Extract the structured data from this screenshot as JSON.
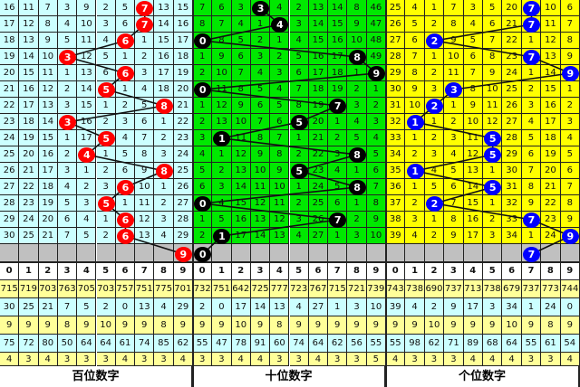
{
  "chart_data": {
    "type": "table",
    "header": [
      "0",
      "1",
      "2",
      "3",
      "4",
      "5",
      "6",
      "7",
      "8",
      "9"
    ],
    "panels": [
      {
        "title": "百位数字",
        "bg": "#ccffff",
        "ball_color": "#ff0000",
        "rows": [
          [
            16,
            11,
            7,
            3,
            9,
            2,
            5,
            7,
            13,
            15
          ],
          [
            17,
            12,
            8,
            4,
            10,
            3,
            6,
            7,
            14,
            16
          ],
          [
            18,
            13,
            9,
            5,
            11,
            4,
            6,
            1,
            15,
            17
          ],
          [
            19,
            14,
            10,
            3,
            12,
            5,
            1,
            2,
            16,
            18
          ],
          [
            20,
            15,
            11,
            1,
            13,
            6,
            6,
            3,
            17,
            19
          ],
          [
            21,
            16,
            12,
            2,
            14,
            5,
            1,
            4,
            18,
            20
          ],
          [
            22,
            17,
            13,
            3,
            15,
            1,
            2,
            5,
            8,
            21
          ],
          [
            23,
            18,
            14,
            3,
            16,
            2,
            3,
            6,
            1,
            22
          ],
          [
            24,
            19,
            15,
            1,
            17,
            5,
            4,
            7,
            2,
            23
          ],
          [
            25,
            20,
            16,
            2,
            4,
            1,
            5,
            8,
            3,
            24
          ],
          [
            26,
            21,
            17,
            3,
            1,
            2,
            6,
            9,
            8,
            25
          ],
          [
            27,
            22,
            18,
            4,
            2,
            3,
            6,
            10,
            1,
            26
          ],
          [
            28,
            23,
            19,
            5,
            3,
            5,
            1,
            11,
            2,
            27
          ],
          [
            29,
            24,
            20,
            6,
            4,
            1,
            6,
            12,
            3,
            28
          ],
          [
            30,
            25,
            21,
            7,
            5,
            2,
            6,
            13,
            4,
            29
          ]
        ],
        "balls": [
          7,
          7,
          6,
          3,
          6,
          5,
          8,
          3,
          5,
          4,
          8,
          6,
          5,
          6,
          6,
          9
        ],
        "stats": [
          [
            715,
            719,
            703,
            763,
            705,
            703,
            757,
            751,
            775,
            701
          ],
          [
            30,
            25,
            21,
            7,
            5,
            2,
            0,
            13,
            4,
            29
          ],
          [
            9,
            9,
            9,
            8,
            9,
            10,
            9,
            9,
            8,
            9
          ],
          [
            75,
            72,
            80,
            50,
            64,
            64,
            61,
            74,
            85,
            62
          ],
          [
            4,
            3,
            4,
            3,
            3,
            3,
            4,
            3,
            3,
            4
          ]
        ]
      },
      {
        "title": "十位数字",
        "bg": "#00e800",
        "ball_color": "#000000",
        "rows": [
          [
            7,
            6,
            3,
            3,
            4,
            2,
            13,
            14,
            8,
            46
          ],
          [
            8,
            7,
            4,
            1,
            4,
            3,
            14,
            15,
            9,
            47
          ],
          [
            0,
            8,
            5,
            2,
            1,
            4,
            15,
            16,
            10,
            48
          ],
          [
            1,
            9,
            6,
            3,
            2,
            5,
            16,
            17,
            8,
            49
          ],
          [
            2,
            10,
            7,
            4,
            3,
            6,
            17,
            18,
            1,
            9
          ],
          [
            0,
            11,
            8,
            5,
            4,
            7,
            18,
            19,
            2,
            1
          ],
          [
            1,
            12,
            9,
            6,
            5,
            8,
            19,
            7,
            3,
            2
          ],
          [
            2,
            13,
            10,
            7,
            6,
            5,
            20,
            1,
            4,
            3
          ],
          [
            3,
            1,
            11,
            8,
            7,
            1,
            21,
            2,
            5,
            4
          ],
          [
            4,
            1,
            12,
            9,
            8,
            2,
            22,
            3,
            8,
            5
          ],
          [
            5,
            2,
            13,
            10,
            9,
            5,
            23,
            4,
            1,
            6
          ],
          [
            6,
            3,
            14,
            11,
            10,
            1,
            24,
            5,
            8,
            7
          ],
          [
            0,
            4,
            15,
            12,
            11,
            2,
            25,
            6,
            1,
            8
          ],
          [
            1,
            5,
            16,
            13,
            12,
            3,
            26,
            7,
            2,
            9
          ],
          [
            2,
            1,
            17,
            14,
            13,
            4,
            27,
            1,
            3,
            10
          ]
        ],
        "balls": [
          3,
          4,
          0,
          8,
          9,
          0,
          7,
          5,
          1,
          8,
          5,
          8,
          0,
          7,
          1,
          0
        ],
        "stats": [
          [
            732,
            751,
            642,
            725,
            777,
            723,
            767,
            715,
            721,
            739
          ],
          [
            2,
            0,
            17,
            14,
            13,
            4,
            27,
            1,
            3,
            10
          ],
          [
            9,
            9,
            10,
            9,
            8,
            9,
            9,
            9,
            9,
            9
          ],
          [
            55,
            47,
            78,
            91,
            60,
            74,
            64,
            62,
            56,
            55
          ],
          [
            3,
            3,
            4,
            4,
            3,
            3,
            4,
            3,
            3,
            5
          ]
        ]
      },
      {
        "title": "个位数字",
        "bg": "#ffff00",
        "ball_color": "#0000ff",
        "rows": [
          [
            25,
            4,
            1,
            7,
            3,
            5,
            20,
            7,
            10,
            6
          ],
          [
            26,
            5,
            2,
            8,
            4,
            6,
            21,
            7,
            11,
            7
          ],
          [
            27,
            6,
            2,
            9,
            5,
            7,
            22,
            1,
            12,
            8
          ],
          [
            28,
            7,
            1,
            10,
            6,
            8,
            23,
            7,
            13,
            9
          ],
          [
            29,
            8,
            2,
            11,
            7,
            9,
            24,
            1,
            14,
            9
          ],
          [
            30,
            9,
            3,
            3,
            8,
            10,
            25,
            2,
            15,
            1
          ],
          [
            31,
            10,
            2,
            1,
            9,
            11,
            26,
            3,
            16,
            2
          ],
          [
            32,
            1,
            1,
            2,
            10,
            12,
            27,
            4,
            17,
            3
          ],
          [
            33,
            1,
            2,
            3,
            11,
            5,
            28,
            5,
            18,
            4
          ],
          [
            34,
            2,
            3,
            4,
            12,
            5,
            29,
            6,
            19,
            5
          ],
          [
            35,
            1,
            4,
            5,
            13,
            1,
            30,
            7,
            20,
            6
          ],
          [
            36,
            1,
            5,
            6,
            14,
            5,
            31,
            8,
            21,
            7
          ],
          [
            37,
            2,
            2,
            7,
            15,
            1,
            32,
            9,
            22,
            8
          ],
          [
            38,
            3,
            1,
            8,
            16,
            2,
            33,
            7,
            23,
            9
          ],
          [
            39,
            4,
            2,
            9,
            17,
            3,
            34,
            1,
            24,
            9
          ]
        ],
        "balls": [
          7,
          7,
          2,
          7,
          9,
          3,
          2,
          1,
          5,
          5,
          1,
          5,
          2,
          7,
          9,
          7
        ],
        "stats": [
          [
            743,
            738,
            690,
            737,
            713,
            738,
            679,
            737,
            773,
            744
          ],
          [
            39,
            4,
            2,
            9,
            17,
            3,
            34,
            1,
            24,
            0
          ],
          [
            9,
            9,
            10,
            9,
            9,
            9,
            10,
            9,
            8,
            9
          ],
          [
            55,
            98,
            62,
            71,
            89,
            68,
            64,
            55,
            61,
            54
          ],
          [
            4,
            3,
            3,
            3,
            4,
            4,
            4,
            3,
            3,
            4
          ]
        ]
      }
    ],
    "blank_row_color": "#c0c0c0",
    "stat_row_colors": [
      "#ffff99",
      "#ccffff"
    ]
  }
}
